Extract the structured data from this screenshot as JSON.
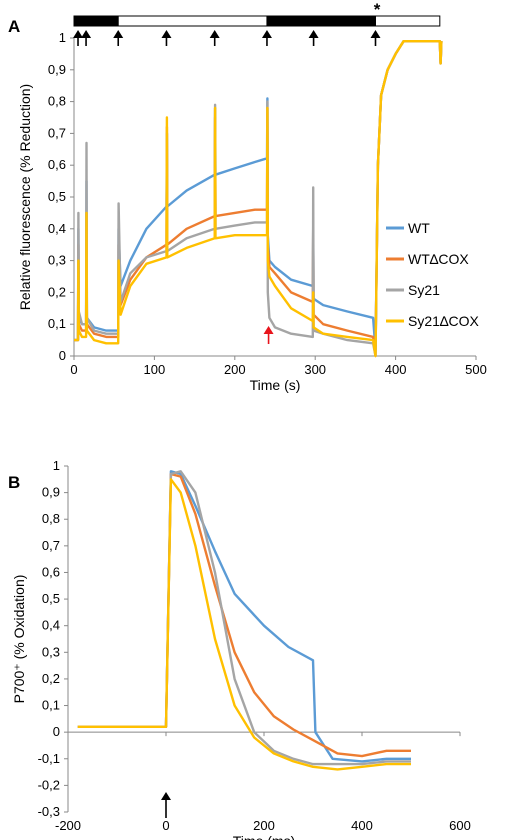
{
  "chart_data": [
    {
      "panel": "A",
      "type": "line",
      "xlabel": "Time (s)",
      "ylabel": "Relative fluorescence  (% Reduction)",
      "xlim": [
        0,
        500
      ],
      "ylim": [
        0,
        1
      ],
      "x_ticks": [
        "0",
        "100",
        "200",
        "300",
        "400",
        "500"
      ],
      "y_ticks": [
        "0",
        "0,1",
        "0,2",
        "0,3",
        "0,4",
        "0,5",
        "0,6",
        "0,7",
        "0,8",
        "0,9",
        "1"
      ],
      "light_bar": [
        {
          "from": 0,
          "to": 55,
          "state": "dark"
        },
        {
          "from": 55,
          "to": 240,
          "state": "light"
        },
        {
          "from": 240,
          "to": 375,
          "state": "dark"
        },
        {
          "from": 375,
          "to": 455,
          "state": "light"
        }
      ],
      "arrows": [
        {
          "x": 5,
          "color": "#000000"
        },
        {
          "x": 15,
          "color": "#000000"
        },
        {
          "x": 55,
          "color": "#000000"
        },
        {
          "x": 115,
          "color": "#000000"
        },
        {
          "x": 175,
          "color": "#000000"
        },
        {
          "x": 240,
          "color": "#000000"
        },
        {
          "x": 298,
          "color": "#000000"
        },
        {
          "x": 375,
          "color": "#000000"
        }
      ],
      "red_arrow": {
        "x": 242,
        "color": "#e8141c"
      },
      "asterisk": {
        "x": 377,
        "text": "*"
      },
      "legend_position": "right",
      "series": [
        {
          "name": "WT",
          "color": "#5b9bd5",
          "x": [
            0,
            5,
            5.5,
            6,
            10,
            15,
            15.5,
            16,
            25,
            40,
            55,
            55.5,
            58,
            70,
            90,
            115,
            115.5,
            116,
            140,
            175,
            175.5,
            176,
            200,
            225,
            238,
            240,
            240.5,
            241,
            243,
            250,
            270,
            297,
            297.5,
            298,
            310,
            340,
            372,
            375,
            378,
            382,
            390,
            400,
            410,
            455,
            456,
            457
          ],
          "y": [
            0.05,
            0.05,
            0.4,
            0.12,
            0.1,
            0.1,
            0.55,
            0.12,
            0.09,
            0.08,
            0.08,
            0.4,
            0.22,
            0.3,
            0.4,
            0.47,
            0.7,
            0.47,
            0.52,
            0.57,
            0.78,
            0.57,
            0.59,
            0.61,
            0.62,
            0.62,
            0.81,
            0.38,
            0.3,
            0.28,
            0.24,
            0.22,
            0.4,
            0.18,
            0.16,
            0.14,
            0.12,
            0.02,
            0.6,
            0.82,
            0.9,
            0.95,
            0.99,
            0.99,
            0.92,
            0.99
          ]
        },
        {
          "name": "WT∆COX",
          "color": "#ed7d31",
          "x": [
            0,
            5,
            5.5,
            6,
            10,
            15,
            15.5,
            16,
            25,
            40,
            55,
            55.5,
            58,
            70,
            90,
            115,
            115.5,
            116,
            140,
            175,
            175.5,
            176,
            200,
            225,
            238,
            240,
            240.5,
            241,
            243,
            250,
            270,
            297,
            297.5,
            298,
            310,
            340,
            372,
            375,
            378,
            382,
            390,
            400,
            410,
            455,
            456,
            457
          ],
          "y": [
            0.05,
            0.05,
            0.35,
            0.1,
            0.08,
            0.08,
            0.45,
            0.1,
            0.07,
            0.06,
            0.06,
            0.35,
            0.16,
            0.24,
            0.31,
            0.35,
            0.72,
            0.35,
            0.4,
            0.44,
            0.75,
            0.44,
            0.45,
            0.46,
            0.46,
            0.46,
            0.78,
            0.35,
            0.28,
            0.26,
            0.2,
            0.17,
            0.4,
            0.13,
            0.1,
            0.08,
            0.06,
            0.0,
            0.6,
            0.82,
            0.9,
            0.95,
            0.99,
            0.99,
            0.92,
            0.99
          ]
        },
        {
          "name": "Sy21",
          "color": "#a5a5a5",
          "x": [
            0,
            5,
            5.5,
            6,
            10,
            15,
            15.5,
            16,
            25,
            40,
            55,
            55.5,
            58,
            70,
            90,
            115,
            115.5,
            116,
            140,
            175,
            175.5,
            176,
            200,
            225,
            238,
            240,
            240.5,
            241,
            243,
            250,
            270,
            297,
            297.5,
            298,
            310,
            340,
            372,
            375,
            378,
            382,
            390,
            400,
            410,
            455,
            456,
            457
          ],
          "y": [
            0.05,
            0.05,
            0.45,
            0.14,
            0.1,
            0.1,
            0.67,
            0.12,
            0.08,
            0.07,
            0.07,
            0.48,
            0.17,
            0.26,
            0.31,
            0.33,
            0.7,
            0.33,
            0.37,
            0.4,
            0.79,
            0.4,
            0.41,
            0.42,
            0.42,
            0.42,
            0.8,
            0.2,
            0.12,
            0.09,
            0.07,
            0.06,
            0.53,
            0.08,
            0.07,
            0.05,
            0.04,
            0.0,
            0.6,
            0.82,
            0.9,
            0.95,
            0.99,
            0.99,
            0.92,
            0.99
          ]
        },
        {
          "name": "Sy21∆COX",
          "color": "#ffc000",
          "x": [
            0,
            5,
            5.5,
            6,
            10,
            15,
            15.5,
            16,
            25,
            40,
            55,
            55.5,
            58,
            70,
            90,
            115,
            115.5,
            116,
            140,
            175,
            175.5,
            176,
            200,
            225,
            238,
            240,
            240.5,
            241,
            243,
            250,
            270,
            297,
            297.5,
            298,
            310,
            340,
            372,
            375,
            378,
            382,
            390,
            400,
            410,
            455,
            456,
            457
          ],
          "y": [
            0.05,
            0.05,
            0.3,
            0.08,
            0.06,
            0.06,
            0.45,
            0.08,
            0.05,
            0.04,
            0.04,
            0.3,
            0.13,
            0.22,
            0.29,
            0.31,
            0.75,
            0.31,
            0.34,
            0.37,
            0.78,
            0.37,
            0.38,
            0.38,
            0.38,
            0.38,
            0.78,
            0.3,
            0.25,
            0.22,
            0.15,
            0.11,
            0.2,
            0.09,
            0.07,
            0.06,
            0.05,
            0.0,
            0.6,
            0.82,
            0.9,
            0.95,
            0.99,
            0.99,
            0.92,
            0.99
          ]
        }
      ]
    },
    {
      "panel": "B",
      "type": "line",
      "xlabel": "Time (ms)",
      "ylabel": "P700⁺ (% Oxidation)",
      "xlim": [
        -200,
        600
      ],
      "ylim": [
        -0.3,
        1
      ],
      "x_ticks": [
        "-200",
        "0",
        "200",
        "400",
        "600"
      ],
      "y_ticks": [
        "-0,3",
        "-0,2",
        "-0,1",
        "0",
        "0,1",
        "0,2",
        "0,3",
        "0,4",
        "0,5",
        "0,6",
        "0,7",
        "0,8",
        "0,9",
        "1"
      ],
      "arrow": {
        "x": 0,
        "color": "#000000"
      },
      "series": [
        {
          "name": "WT",
          "color": "#5b9bd5",
          "x": [
            -180,
            0,
            10,
            30,
            60,
            100,
            140,
            200,
            250,
            300,
            305,
            340,
            400,
            450,
            500
          ],
          "y": [
            0.02,
            0.02,
            0.98,
            0.97,
            0.85,
            0.68,
            0.52,
            0.4,
            0.32,
            0.27,
            0.0,
            -0.1,
            -0.11,
            -0.1,
            -0.1
          ]
        },
        {
          "name": "WT∆COX",
          "color": "#ed7d31",
          "x": [
            -180,
            0,
            10,
            30,
            60,
            100,
            140,
            180,
            220,
            260,
            300,
            350,
            400,
            450,
            500
          ],
          "y": [
            0.02,
            0.02,
            0.97,
            0.96,
            0.82,
            0.55,
            0.3,
            0.15,
            0.06,
            0.01,
            -0.03,
            -0.08,
            -0.09,
            -0.07,
            -0.07
          ]
        },
        {
          "name": "Sy21",
          "color": "#a5a5a5",
          "x": [
            -180,
            0,
            10,
            30,
            60,
            100,
            140,
            180,
            220,
            260,
            300,
            350,
            400,
            450,
            500
          ],
          "y": [
            0.02,
            0.02,
            0.97,
            0.98,
            0.9,
            0.6,
            0.2,
            0.0,
            -0.07,
            -0.1,
            -0.12,
            -0.12,
            -0.12,
            -0.11,
            -0.11
          ]
        },
        {
          "name": "Sy21∆COX",
          "color": "#ffc000",
          "x": [
            -180,
            0,
            10,
            30,
            60,
            100,
            140,
            180,
            220,
            260,
            300,
            350,
            400,
            450,
            500
          ],
          "y": [
            0.02,
            0.02,
            0.95,
            0.9,
            0.7,
            0.35,
            0.1,
            -0.02,
            -0.08,
            -0.11,
            -0.13,
            -0.14,
            -0.13,
            -0.12,
            -0.12
          ]
        }
      ]
    }
  ]
}
